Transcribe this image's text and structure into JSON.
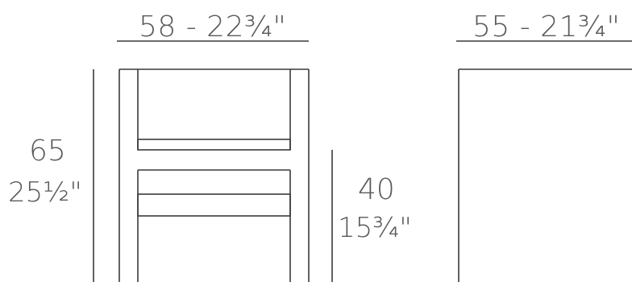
{
  "dimensions": {
    "front_width": "58 - 22¾\"",
    "side_width": "55 - 21¾\"",
    "total_height_cm": "65",
    "total_height_in": "25½\"",
    "seat_height_cm": "40",
    "seat_height_in": "15¾\""
  },
  "colors": {
    "line": "#3a3a3a",
    "text": "#5a5a5a",
    "background": "#ffffff"
  }
}
